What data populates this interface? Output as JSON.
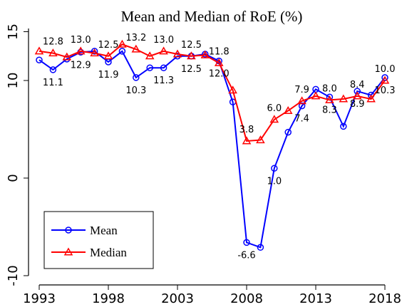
{
  "chart_data": {
    "type": "line",
    "title": "Mean and Median of RoE (%)",
    "x": [
      1993,
      1994,
      1995,
      1996,
      1997,
      1998,
      1999,
      2000,
      2001,
      2002,
      2003,
      2004,
      2005,
      2006,
      2007,
      2008,
      2009,
      2010,
      2011,
      2012,
      2013,
      2014,
      2015,
      2016,
      2017,
      2018
    ],
    "xlim": [
      1993,
      2018
    ],
    "xticks": [
      1993,
      1998,
      2003,
      2008,
      2013,
      2018
    ],
    "ylim": [
      -10,
      15
    ],
    "yticks": [
      -10,
      0,
      10,
      15
    ],
    "legend": "bottom-left",
    "series": [
      {
        "name": "Mean",
        "color": "#0000ff",
        "marker": "circle",
        "values": [
          12.1,
          11.1,
          12.2,
          12.9,
          13.0,
          11.9,
          13.0,
          10.3,
          11.3,
          11.3,
          12.5,
          12.5,
          12.7,
          12.0,
          7.8,
          -6.6,
          -7.1,
          1.0,
          4.7,
          7.4,
          9.1,
          8.3,
          5.3,
          8.9,
          8.5,
          10.3
        ],
        "value_labels": [
          null,
          "11.1",
          null,
          "12.9",
          null,
          "11.9",
          null,
          "10.3",
          null,
          "11.3",
          null,
          "12.5",
          null,
          "12.0",
          null,
          "-6.6",
          null,
          "1.0",
          null,
          "7.4",
          null,
          "8.3",
          null,
          "8.9",
          null,
          "10.3"
        ]
      },
      {
        "name": "Median",
        "color": "#ff0000",
        "marker": "triangle",
        "values": [
          13.0,
          12.8,
          12.4,
          13.0,
          12.8,
          12.5,
          13.7,
          13.2,
          12.5,
          13.0,
          12.7,
          12.5,
          12.6,
          11.8,
          9.0,
          3.8,
          3.9,
          6.0,
          6.9,
          7.9,
          8.4,
          8.0,
          8.1,
          8.4,
          8.1,
          10.0
        ],
        "value_labels": [
          null,
          "12.8",
          null,
          "13.0",
          null,
          "12.5",
          null,
          "13.2",
          null,
          "13.0",
          null,
          "12.5",
          null,
          "11.8",
          null,
          "3.8",
          null,
          "6.0",
          null,
          "7.9",
          null,
          "8.0",
          null,
          "8.4",
          null,
          "10.0"
        ]
      }
    ]
  }
}
